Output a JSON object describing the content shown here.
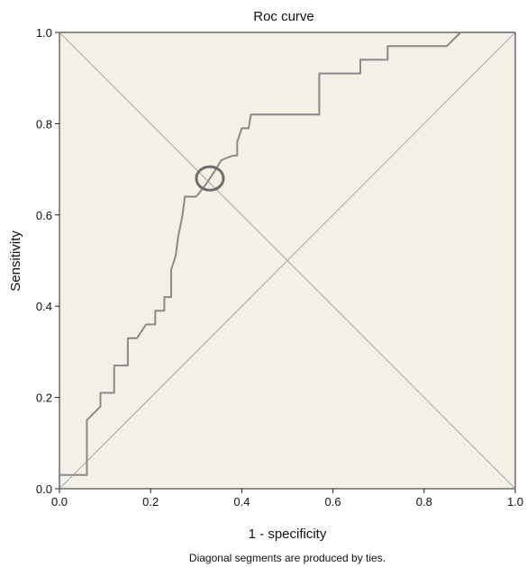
{
  "chart_data": {
    "type": "line",
    "title": "Roc curve",
    "xlabel": "1 - specificity",
    "ylabel": "Sensitivity",
    "footnote": "Diagonal segments are produced by ties.",
    "xlim": [
      0,
      1
    ],
    "ylim": [
      0,
      1
    ],
    "x_ticks": [
      "0.0",
      "0.2",
      "0.4",
      "0.6",
      "0.8",
      "1.0"
    ],
    "y_ticks": [
      "0.0",
      "0.2",
      "0.4",
      "0.6",
      "0.8",
      "1.0"
    ],
    "grid": false,
    "background_color": "#f3f0e7",
    "curve_color": "#8a8a8a",
    "reference_line_color": "#a9a9a9",
    "series": [
      {
        "values_xy": [
          [
            0,
            0
          ],
          [
            0,
            0.03
          ],
          [
            0.06,
            0.03
          ],
          [
            0.06,
            0.15
          ],
          [
            0.09,
            0.18
          ],
          [
            0.09,
            0.21
          ],
          [
            0.12,
            0.21
          ],
          [
            0.12,
            0.27
          ],
          [
            0.15,
            0.27
          ],
          [
            0.15,
            0.33
          ],
          [
            0.17,
            0.33
          ],
          [
            0.19,
            0.36
          ],
          [
            0.21,
            0.36
          ],
          [
            0.21,
            0.39
          ],
          [
            0.23,
            0.39
          ],
          [
            0.23,
            0.42
          ],
          [
            0.245,
            0.42
          ],
          [
            0.245,
            0.48
          ],
          [
            0.255,
            0.51
          ],
          [
            0.26,
            0.55
          ],
          [
            0.27,
            0.6
          ],
          [
            0.275,
            0.64
          ],
          [
            0.3,
            0.64
          ],
          [
            0.32,
            0.665
          ],
          [
            0.34,
            0.695
          ],
          [
            0.355,
            0.72
          ],
          [
            0.38,
            0.73
          ],
          [
            0.39,
            0.73
          ],
          [
            0.39,
            0.76
          ],
          [
            0.4,
            0.79
          ],
          [
            0.415,
            0.79
          ],
          [
            0.42,
            0.82
          ],
          [
            0.57,
            0.82
          ],
          [
            0.57,
            0.91
          ],
          [
            0.66,
            0.91
          ],
          [
            0.66,
            0.94
          ],
          [
            0.72,
            0.94
          ],
          [
            0.72,
            0.97
          ],
          [
            0.85,
            0.97
          ],
          [
            0.88,
            1.0
          ],
          [
            1.0,
            1.0
          ]
        ]
      }
    ],
    "reference_lines": [
      {
        "from": [
          0,
          0
        ],
        "to": [
          1,
          1
        ]
      },
      {
        "from": [
          0,
          1
        ],
        "to": [
          1,
          0
        ]
      }
    ],
    "highlight_point": [
      0.33,
      0.68
    ]
  }
}
